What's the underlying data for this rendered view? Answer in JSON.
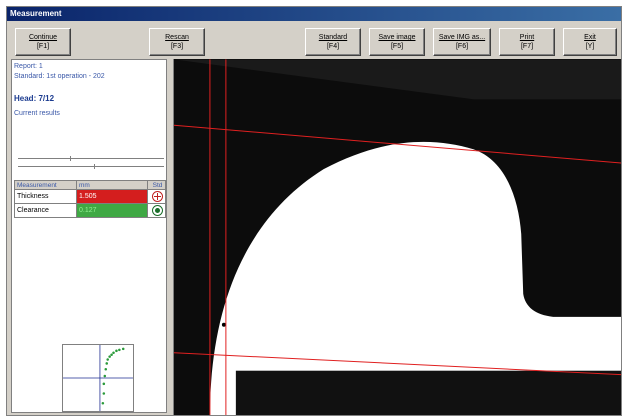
{
  "window": {
    "title": "Measurement"
  },
  "toolbar": {
    "buttons": [
      {
        "label": "Continue",
        "key": "[F1]"
      },
      {
        "label": "Rescan",
        "key": "[F3]"
      },
      {
        "label": "Standard",
        "key": "[F4]"
      },
      {
        "label": "Save image",
        "key": "[F5]"
      },
      {
        "label": "Save IMG as...",
        "key": "[F6]"
      },
      {
        "label": "Print",
        "key": "[F7]"
      },
      {
        "label": "Exit",
        "key": "[Y]"
      }
    ]
  },
  "info": {
    "report": "Report: 1",
    "standard": "Standard: 1st operation - 202",
    "head": "Head: 7/12",
    "current_results": "Current results"
  },
  "results": {
    "col_measurement": "Measurement",
    "col_unit": "mm",
    "col_std": "Std",
    "rows": [
      {
        "name": "Thickness",
        "value": "1.505",
        "status": "plus",
        "color": "#d41e1e"
      },
      {
        "name": "Clearance",
        "value": "0.127",
        "status": "ok",
        "color": "#3fa844"
      }
    ]
  },
  "mini_chart": {
    "point_color": "#2a9a3a",
    "crosshair_color": "#1c2c90"
  },
  "viewport": {
    "line_color": "#e02020",
    "part_color": "#ffffff",
    "background": "#0c0c0c"
  }
}
